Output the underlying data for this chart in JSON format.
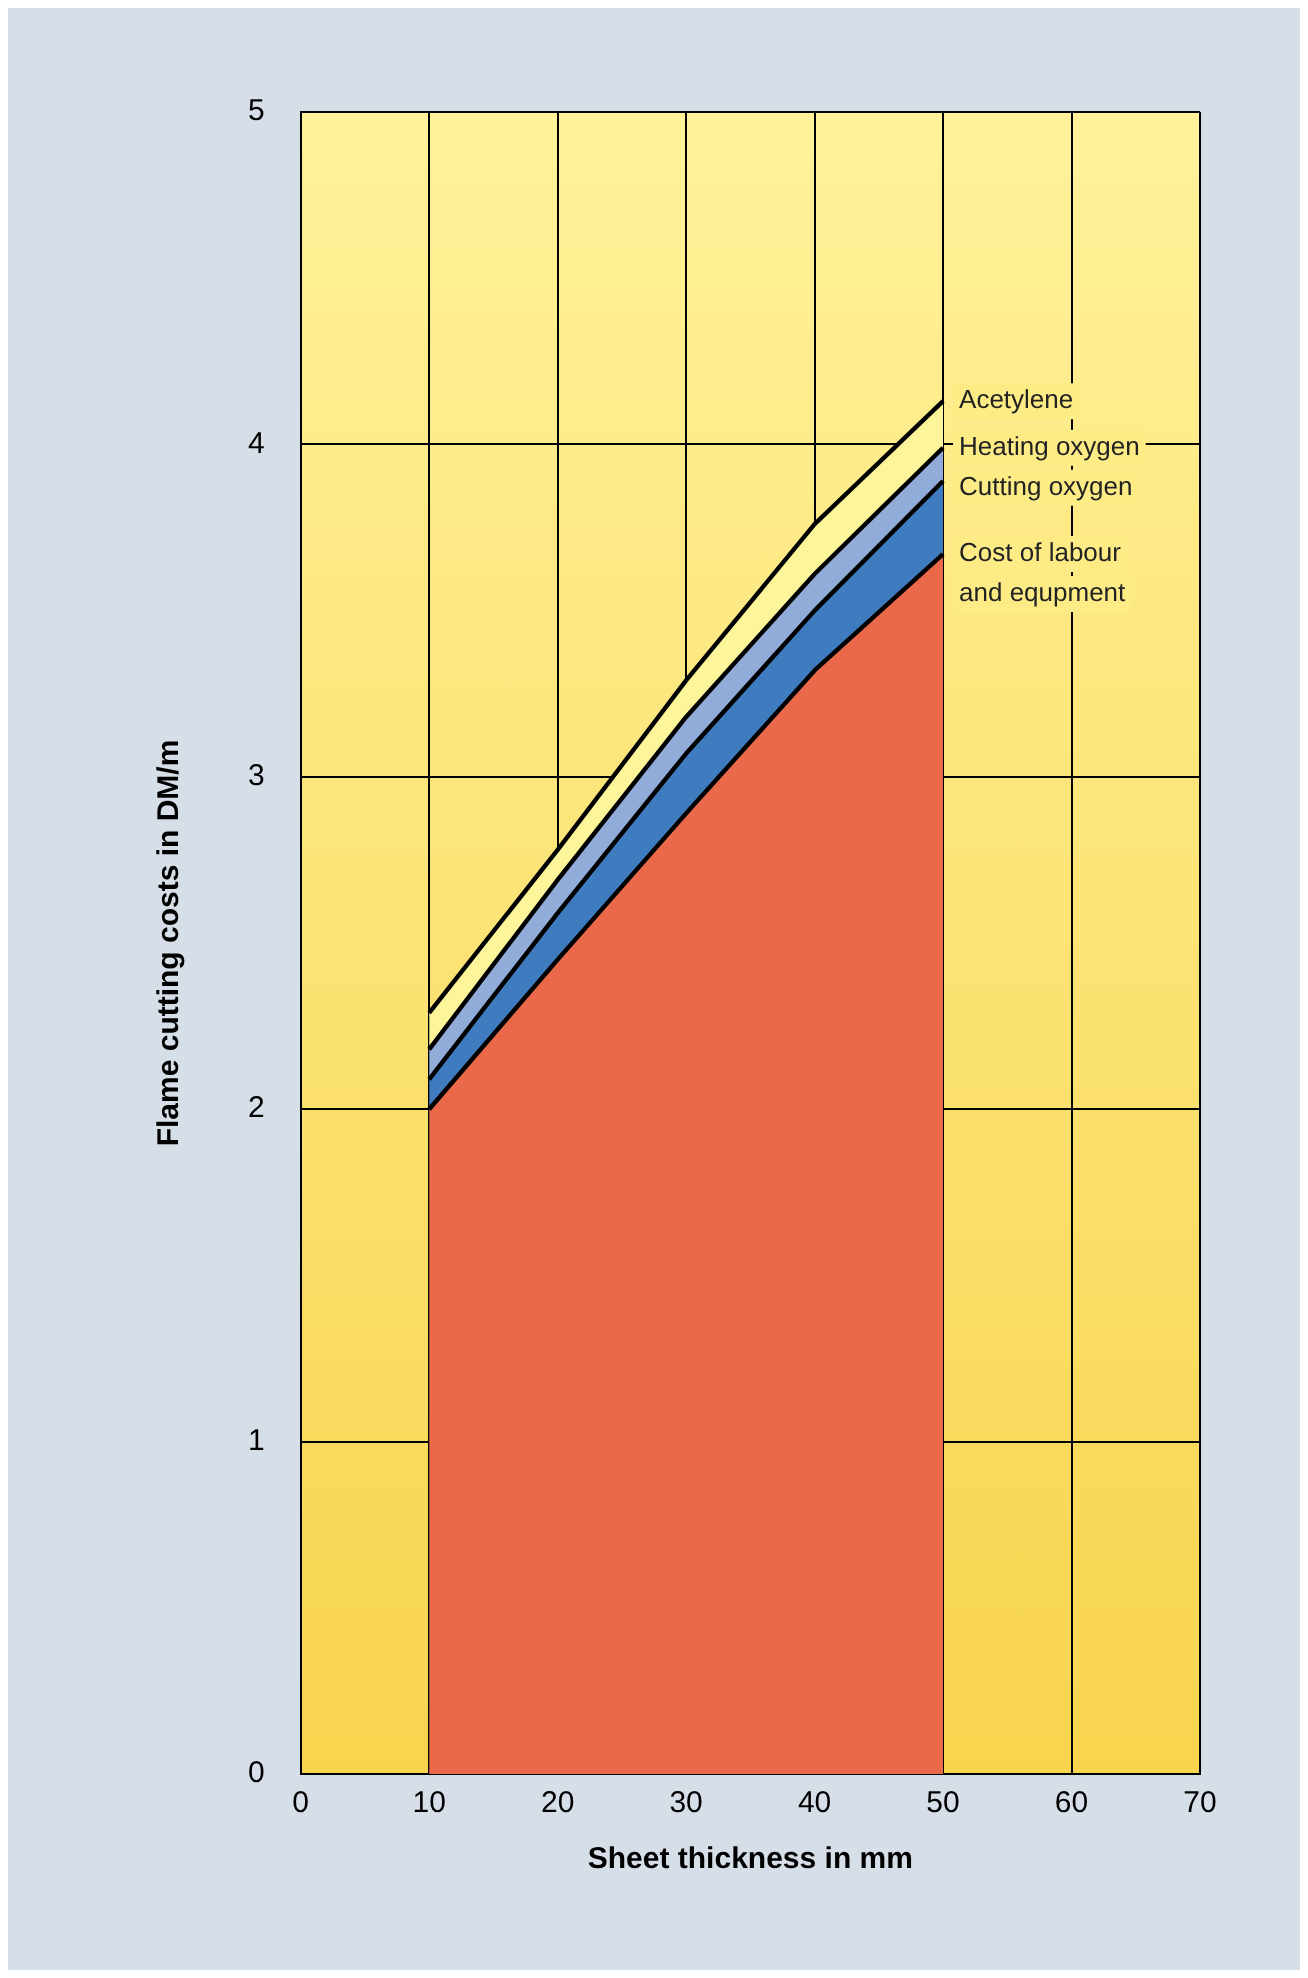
{
  "chart_data": {
    "type": "area",
    "stacked": true,
    "xlabel": "Sheet thickness in mm",
    "ylabel": "Flame cutting costs in DM/m",
    "x": [
      10,
      20,
      30,
      40,
      50
    ],
    "xlim": [
      0,
      70
    ],
    "xticks": [
      0,
      10,
      20,
      30,
      40,
      50,
      60,
      70
    ],
    "ylim": [
      0,
      5
    ],
    "yticks": [
      0,
      1,
      2,
      3,
      4,
      5
    ],
    "grid": true,
    "legend": false,
    "marker": "none",
    "line_style": "solid",
    "series": [
      {
        "name": "Cost of labour and equpment",
        "color": "#e9694a",
        "values": [
          2.0,
          2.45,
          2.89,
          3.32,
          3.67
        ]
      },
      {
        "name": "Cutting oxygen",
        "color": "#3f7bbf",
        "values": [
          0.09,
          0.14,
          0.18,
          0.18,
          0.22
        ]
      },
      {
        "name": "Heating oxygen",
        "color": "#92acd9",
        "values": [
          0.09,
          0.1,
          0.11,
          0.11,
          0.1
        ]
      },
      {
        "name": "Acetylene",
        "color": "#fdf59a",
        "values": [
          0.11,
          0.09,
          0.11,
          0.15,
          0.14
        ]
      }
    ]
  }
}
